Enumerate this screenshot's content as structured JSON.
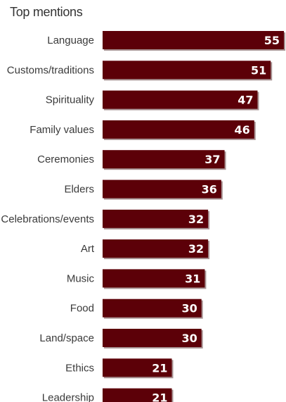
{
  "chart_data": {
    "type": "bar",
    "orientation": "horizontal",
    "title": "Top mentions",
    "categories": [
      "Language",
      "Customs/traditions",
      "Spirituality",
      "Family values",
      "Ceremonies",
      "Elders",
      "Celebrations/events",
      "Art",
      "Music",
      "Food",
      "Land/space",
      "Ethics",
      "Leadership"
    ],
    "values": [
      55,
      51,
      47,
      46,
      37,
      36,
      32,
      32,
      31,
      30,
      30,
      21,
      21
    ],
    "xlim": [
      0,
      55
    ],
    "grid": false,
    "legend": "none",
    "colors": {
      "bar": "#5c0008",
      "bar_shadow": "#a89494",
      "value_text": "#ffffff",
      "label_text": "#3a3a3a"
    }
  }
}
